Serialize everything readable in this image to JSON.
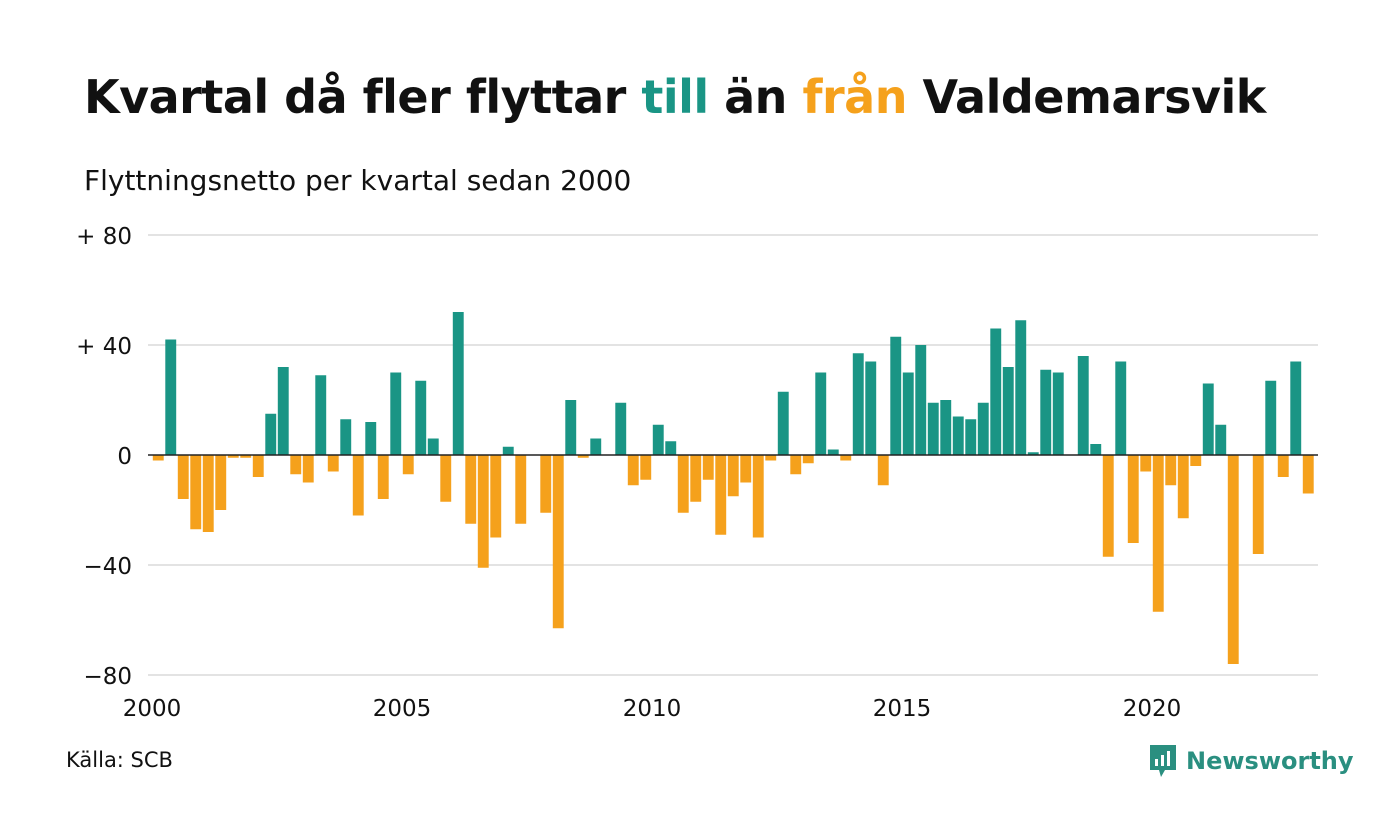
{
  "header": {
    "title_part1": "Kvartal då fler flyttar ",
    "title_till": "till",
    "title_part2": " än ",
    "title_fran": "från",
    "title_part3": " Valdemarsvik",
    "subtitle": "Flyttningsnetto per kvartal sedan 2000"
  },
  "footer": {
    "source": "Källa: SCB",
    "brand": "Newsworthy"
  },
  "colors": {
    "positive": "#1a9585",
    "negative": "#f5a11c",
    "gridline": "#e3e3e3",
    "zeroline": "#222222",
    "brand": "#2a8f80"
  },
  "chart_data": {
    "type": "bar",
    "start_year": 2000,
    "frequency": "quarter",
    "ylim": [
      -80,
      80
    ],
    "yticks": [
      {
        "value": 80,
        "label": "+ 80"
      },
      {
        "value": 40,
        "label": "+ 40"
      },
      {
        "value": 0,
        "label": "0"
      },
      {
        "value": -40,
        "label": "−40"
      },
      {
        "value": -80,
        "label": "−80"
      }
    ],
    "xticks": [
      "2000",
      "2005",
      "2010",
      "2015",
      "2020"
    ],
    "grid": true,
    "series": [
      {
        "values": [
          -2,
          42,
          -16,
          -27,
          -28,
          -20,
          -1,
          -1,
          -8,
          15,
          32,
          -7,
          -10,
          29,
          -6,
          13,
          -22,
          12,
          -16,
          30,
          -7,
          27,
          6,
          -17,
          52,
          -25,
          -41,
          -30,
          3,
          -25,
          0,
          -21,
          -63,
          20,
          -1,
          6,
          0,
          19,
          -11,
          -9,
          11,
          5,
          -21,
          -17,
          -9,
          -29,
          -15,
          -10,
          -30,
          -2,
          23,
          -7,
          -3,
          30,
          2,
          -2,
          37,
          34,
          -11,
          43,
          30,
          40,
          19,
          20,
          14,
          13,
          19,
          46,
          32,
          49,
          1,
          31,
          30,
          0,
          36,
          4,
          -37,
          34,
          -32,
          -6,
          -57,
          -11,
          -23,
          -4,
          26,
          11,
          -76,
          0,
          -36,
          27,
          -8,
          34,
          -14
        ]
      }
    ]
  }
}
